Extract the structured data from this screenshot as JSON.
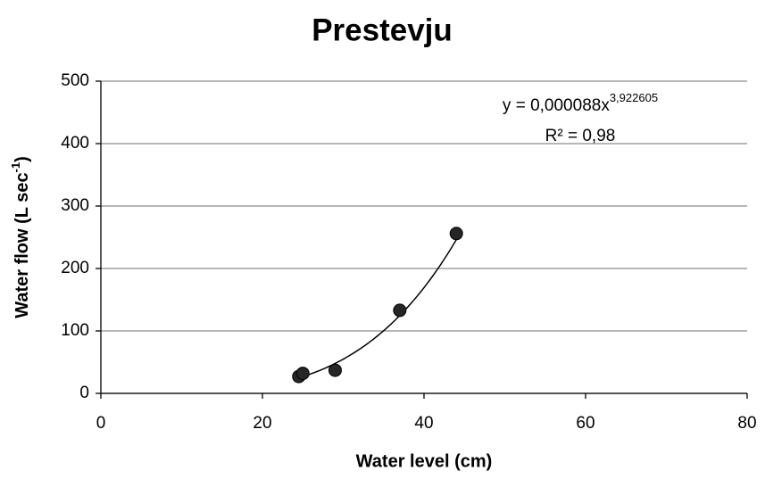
{
  "chart_data": {
    "type": "scatter",
    "title": "Prestevju",
    "xlabel": "Water level (cm)",
    "ylabel": {
      "text": "Water flow (L sec",
      "sup": "-1",
      "end": ")"
    },
    "x": [
      24.5,
      25,
      29,
      37,
      44
    ],
    "values": [
      27,
      32,
      37,
      133,
      256
    ],
    "color": "#262626",
    "xlim": [
      0,
      80
    ],
    "xticks": [
      0,
      20,
      40,
      60,
      80
    ],
    "ylim": [
      0,
      500
    ],
    "yticks": [
      0,
      100,
      200,
      300,
      400,
      500
    ],
    "grid": true,
    "trendline": {
      "type": "power",
      "equation": "y = 0,000088x",
      "exponent_label": "3,922605",
      "r2_label": "R² = 0,98",
      "coefficient": 8.8e-05,
      "exponent": 3.922605
    }
  }
}
